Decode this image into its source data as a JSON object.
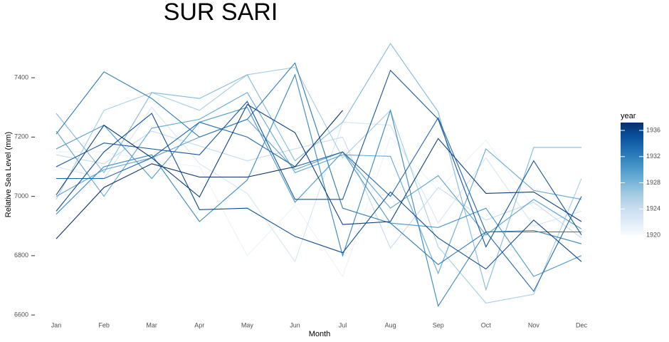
{
  "chart_data": {
    "type": "line",
    "title": "SUR SARI",
    "x_label": "Month",
    "y_label": "Relative Sea Level (mm)",
    "categories": [
      "Jan",
      "Feb",
      "Mar",
      "Apr",
      "May",
      "Jun",
      "Jul",
      "Aug",
      "Sep",
      "Oct",
      "Nov",
      "Dec"
    ],
    "ylim": [
      6581,
      7530
    ],
    "yticks": [
      6600,
      6800,
      7000,
      7200,
      7400
    ],
    "grid": false,
    "series": [
      {
        "color": "#08306b",
        "values": [
          6857,
          7030,
          7110,
          7065,
          7065,
          7100,
          7290,
          null,
          null,
          null,
          null,
          null
        ]
      },
      {
        "color": "#0b3d7f",
        "values": [
          7005,
          7240,
          7130,
          6998,
          7310,
          7215,
          6905,
          6915,
          7195,
          7010,
          7015,
          6915
        ]
      },
      {
        "color": "#0e4a8e",
        "values": [
          6950,
          7150,
          7280,
          6955,
          6960,
          6865,
          6810,
          7015,
          6860,
          6755,
          6920,
          6780
        ]
      },
      {
        "color": "#14559b",
        "values": [
          7100,
          7180,
          7160,
          7140,
          7320,
          6990,
          6990,
          7425,
          7260,
          6830,
          7120,
          6870
        ]
      },
      {
        "color": "#1f66ad",
        "values": [
          7060,
          7060,
          7130,
          7250,
          7200,
          7100,
          7150,
          7000,
          7265,
          6880,
          6680,
          7000
        ]
      },
      {
        "color": "#2a78b9",
        "values": [
          7210,
          7420,
          7330,
          7200,
          7260,
          7450,
          6960,
          6910,
          6770,
          6880,
          6880,
          6880
        ]
      },
      {
        "color": "#3787c0",
        "values": [
          6940,
          7100,
          7140,
          6915,
          7055,
          7410,
          6800,
          7290,
          6630,
          6880,
          6885,
          6840
        ]
      },
      {
        "color": "#4a98c9",
        "values": [
          7160,
          7240,
          7060,
          7250,
          7300,
          6980,
          7150,
          6910,
          6895,
          6960,
          6730,
          6800
        ]
      },
      {
        "color": "#5ba3d0",
        "values": [
          7000,
          7090,
          7130,
          7200,
          7260,
          7090,
          7150,
          6960,
          7070,
          6870,
          6990,
          6890
        ]
      },
      {
        "color": "#64a9d3",
        "values": [
          7220,
          7000,
          7230,
          7260,
          7350,
          7080,
          7140,
          7135,
          6740,
          7160,
          7020,
          6990
        ]
      },
      {
        "color": "#81badb",
        "values": [
          7280,
          7080,
          7350,
          7330,
          7410,
          7120,
          7250,
          7515,
          7285,
          6685,
          7165,
          7165
        ]
      },
      {
        "color": "#a5cde3",
        "values": [
          6990,
          7290,
          7350,
          7290,
          7410,
          7435,
          7130,
          7290,
          6830,
          6640,
          6670,
          7060
        ]
      },
      {
        "color": "#c6dbef",
        "values": [
          7140,
          7110,
          7220,
          7170,
          7120,
          7160,
          7200,
          6825,
          7030,
          6920,
          6980,
          6860
        ]
      },
      {
        "color": "#d6e6f4",
        "values": [
          7100,
          7060,
          7300,
          7110,
          7010,
          6780,
          7250,
          7240,
          6910,
          7130,
          6900,
          6950
        ]
      },
      {
        "color": "#eaf2fb",
        "values": [
          7150,
          7150,
          7120,
          7100,
          6800,
          6970,
          6730,
          7200,
          7020,
          7190,
          6960,
          6930
        ]
      }
    ],
    "colorbar": {
      "title": "year",
      "lim": [
        1920,
        1937.2
      ],
      "ticks": [
        1920,
        1924,
        1928,
        1932,
        1936
      ],
      "colors": [
        "#f7fbff",
        "#deebf7",
        "#c6dbef",
        "#9ecae1",
        "#6baed6",
        "#4292c6",
        "#2171b5",
        "#08519c",
        "#08306b"
      ]
    }
  }
}
